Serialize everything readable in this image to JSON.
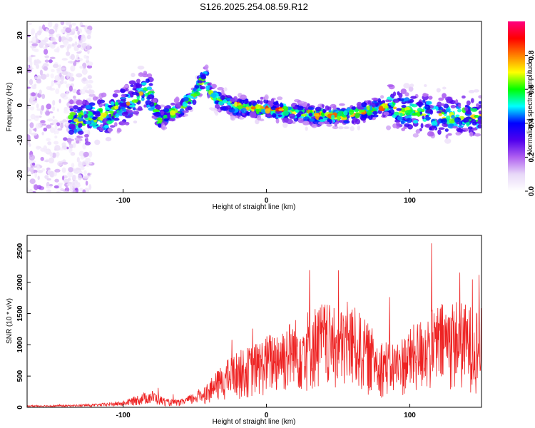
{
  "chart_data": [
    {
      "type": "heatmap",
      "title": "S126.2025.254.08.59.R12",
      "xlabel": "Height of straight line (km)",
      "ylabel": "Frequency (Hz)",
      "xlim": [
        -167,
        150
      ],
      "ylim": [
        -25,
        24
      ],
      "xticks": [
        -100,
        0,
        100
      ],
      "xtick_labels": [
        "-100",
        "0",
        "100"
      ],
      "yticks": [
        -20,
        -10,
        0,
        10,
        20
      ],
      "ytick_labels": [
        "-20",
        "-10",
        "0",
        "10",
        "20"
      ],
      "colorbar": {
        "label": "Normalized spectral amplitude",
        "range": [
          0,
          1
        ],
        "ticks": [
          0.0,
          0.2,
          0.4,
          0.6,
          0.8
        ],
        "tick_labels": [
          "0.0",
          "0.2",
          "0.4",
          "0.6",
          "0.8"
        ],
        "stops": [
          "#ffffff",
          "#e8d8f8",
          "#b060f0",
          "#5000ee",
          "#0000ff",
          "#00ffff",
          "#00ff00",
          "#ffff00",
          "#ff8000",
          "#ff0000",
          "#ff0080"
        ]
      },
      "ridge_x": [
        -130,
        -110,
        -95,
        -85,
        -80,
        -75,
        -60,
        -50,
        -45,
        -42,
        -40,
        -35,
        -25,
        -10,
        0,
        20,
        40,
        55,
        65,
        75,
        85,
        100,
        130,
        150
      ],
      "ridge_y": [
        -4,
        -3,
        1,
        4,
        2,
        -4,
        -1,
        3,
        7,
        9,
        4,
        2,
        0,
        -1,
        -1,
        -2,
        -3,
        -3,
        -2,
        -1,
        0,
        -2,
        -3,
        -3
      ]
    },
    {
      "type": "line",
      "xlabel": "Height of straight line (km)",
      "ylabel": "SNR (10 * v/v)",
      "xlim": [
        -167,
        150
      ],
      "ylim": [
        0,
        2750
      ],
      "xticks": [
        -100,
        0,
        100
      ],
      "xtick_labels": [
        "-100",
        "0",
        "100"
      ],
      "yticks": [
        0,
        500,
        1000,
        1500,
        2000,
        2500
      ],
      "ytick_labels": [
        "0",
        "500",
        "1000",
        "1500",
        "2000",
        "2500"
      ],
      "line_color": "#ee2222",
      "envelope": {
        "x": [
          -167,
          -140,
          -120,
          -100,
          -90,
          -80,
          -70,
          -60,
          -50,
          -40,
          -30,
          -20,
          -10,
          0,
          10,
          20,
          30,
          40,
          50,
          60,
          70,
          80,
          90,
          100,
          110,
          120,
          130,
          140,
          150
        ],
        "y": [
          30,
          35,
          50,
          90,
          180,
          250,
          120,
          110,
          220,
          380,
          650,
          820,
          900,
          1050,
          1200,
          1300,
          1450,
          1550,
          1400,
          1500,
          1250,
          1000,
          950,
          1150,
          1350,
          1500,
          1600,
          1500,
          1450
        ]
      }
    }
  ]
}
